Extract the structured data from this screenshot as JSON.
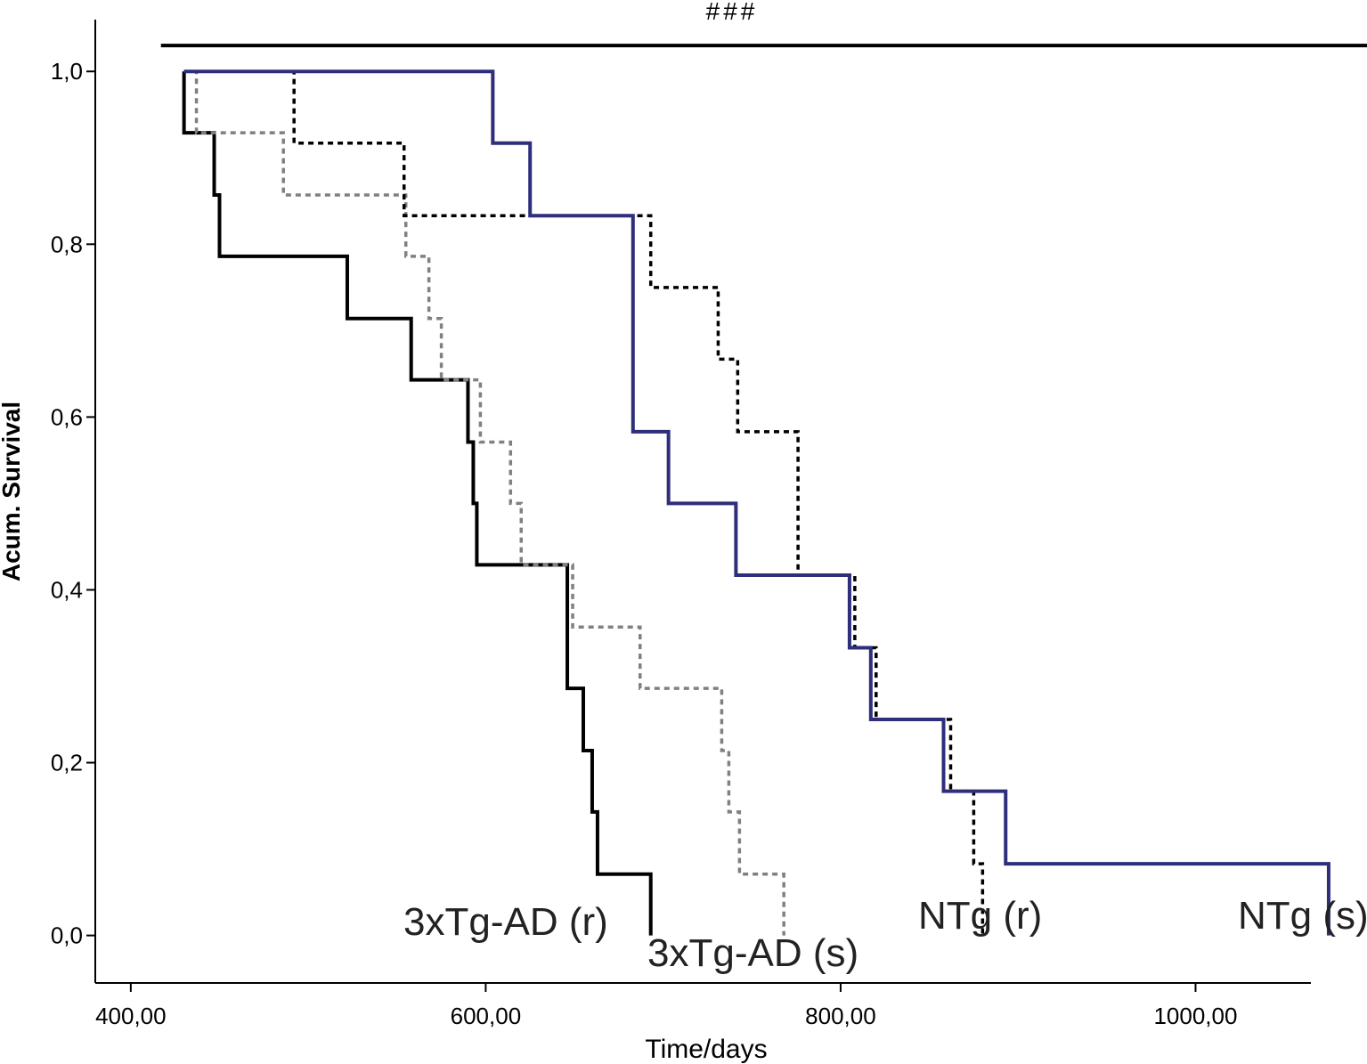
{
  "chart_data": {
    "type": "line",
    "title": "",
    "xlabel": "Time/days",
    "ylabel": "Acum. Survival",
    "xlim": [
      380,
      1065
    ],
    "ylim": [
      -0.055,
      1.06
    ],
    "x_ticks": [
      400,
      600,
      800,
      1000
    ],
    "x_tick_labels": [
      "400,00",
      "600,00",
      "800,00",
      "1000,00"
    ],
    "y_ticks": [
      0,
      0.2,
      0.4,
      0.6,
      0.8,
      1.0
    ],
    "y_tick_labels": [
      "0,0",
      "0,2",
      "0,4",
      "0,6",
      "0,8",
      "1,0"
    ],
    "grid": false,
    "legend": "none",
    "significance": {
      "label": "###",
      "x_range": [
        417,
        1110
      ],
      "y": 1.03
    },
    "series": [
      {
        "name": "3xTg-AD (r)",
        "color": "#000000",
        "dash": "solid",
        "steps": [
          [
            430,
            0.929
          ],
          [
            447,
            0.857
          ],
          [
            450,
            0.786
          ],
          [
            522,
            0.714
          ],
          [
            558,
            0.643
          ],
          [
            590,
            0.571
          ],
          [
            593,
            0.5
          ],
          [
            595,
            0.429
          ],
          [
            646,
            0.286
          ],
          [
            655,
            0.214
          ],
          [
            660,
            0.143
          ],
          [
            663,
            0.071
          ],
          [
            693,
            0.0
          ]
        ]
      },
      {
        "name": "3xTg-AD (s)",
        "color": "#808080",
        "dash": "dotted",
        "steps": [
          [
            430,
            1.0
          ],
          [
            437,
            0.929
          ],
          [
            486,
            0.857
          ],
          [
            555,
            0.786
          ],
          [
            568,
            0.714
          ],
          [
            575,
            0.643
          ],
          [
            597,
            0.571
          ],
          [
            614,
            0.5
          ],
          [
            620,
            0.429
          ],
          [
            649,
            0.357
          ],
          [
            687,
            0.286
          ],
          [
            733,
            0.214
          ],
          [
            737,
            0.143
          ],
          [
            743,
            0.071
          ],
          [
            768,
            0.0
          ]
        ]
      },
      {
        "name": "NTg (r)",
        "color": "#000000",
        "dash": "dotted",
        "steps": [
          [
            430,
            1.0
          ],
          [
            492,
            0.917
          ],
          [
            554,
            0.833
          ],
          [
            693,
            0.75
          ],
          [
            731,
            0.667
          ],
          [
            742,
            0.583
          ],
          [
            776,
            0.417
          ],
          [
            808,
            0.333
          ],
          [
            820,
            0.25
          ],
          [
            862,
            0.167
          ],
          [
            875,
            0.083
          ],
          [
            880,
            0.0
          ]
        ]
      },
      {
        "name": "NTg (s)",
        "color": "#2e2e7a",
        "dash": "solid",
        "steps": [
          [
            430,
            1.0
          ],
          [
            604,
            0.917
          ],
          [
            625,
            0.833
          ],
          [
            683,
            0.583
          ],
          [
            703,
            0.5
          ],
          [
            741,
            0.417
          ],
          [
            805,
            0.333
          ],
          [
            817,
            0.25
          ],
          [
            858,
            0.167
          ],
          [
            893,
            0.083
          ],
          [
            1075,
            0.0
          ]
        ]
      }
    ]
  }
}
